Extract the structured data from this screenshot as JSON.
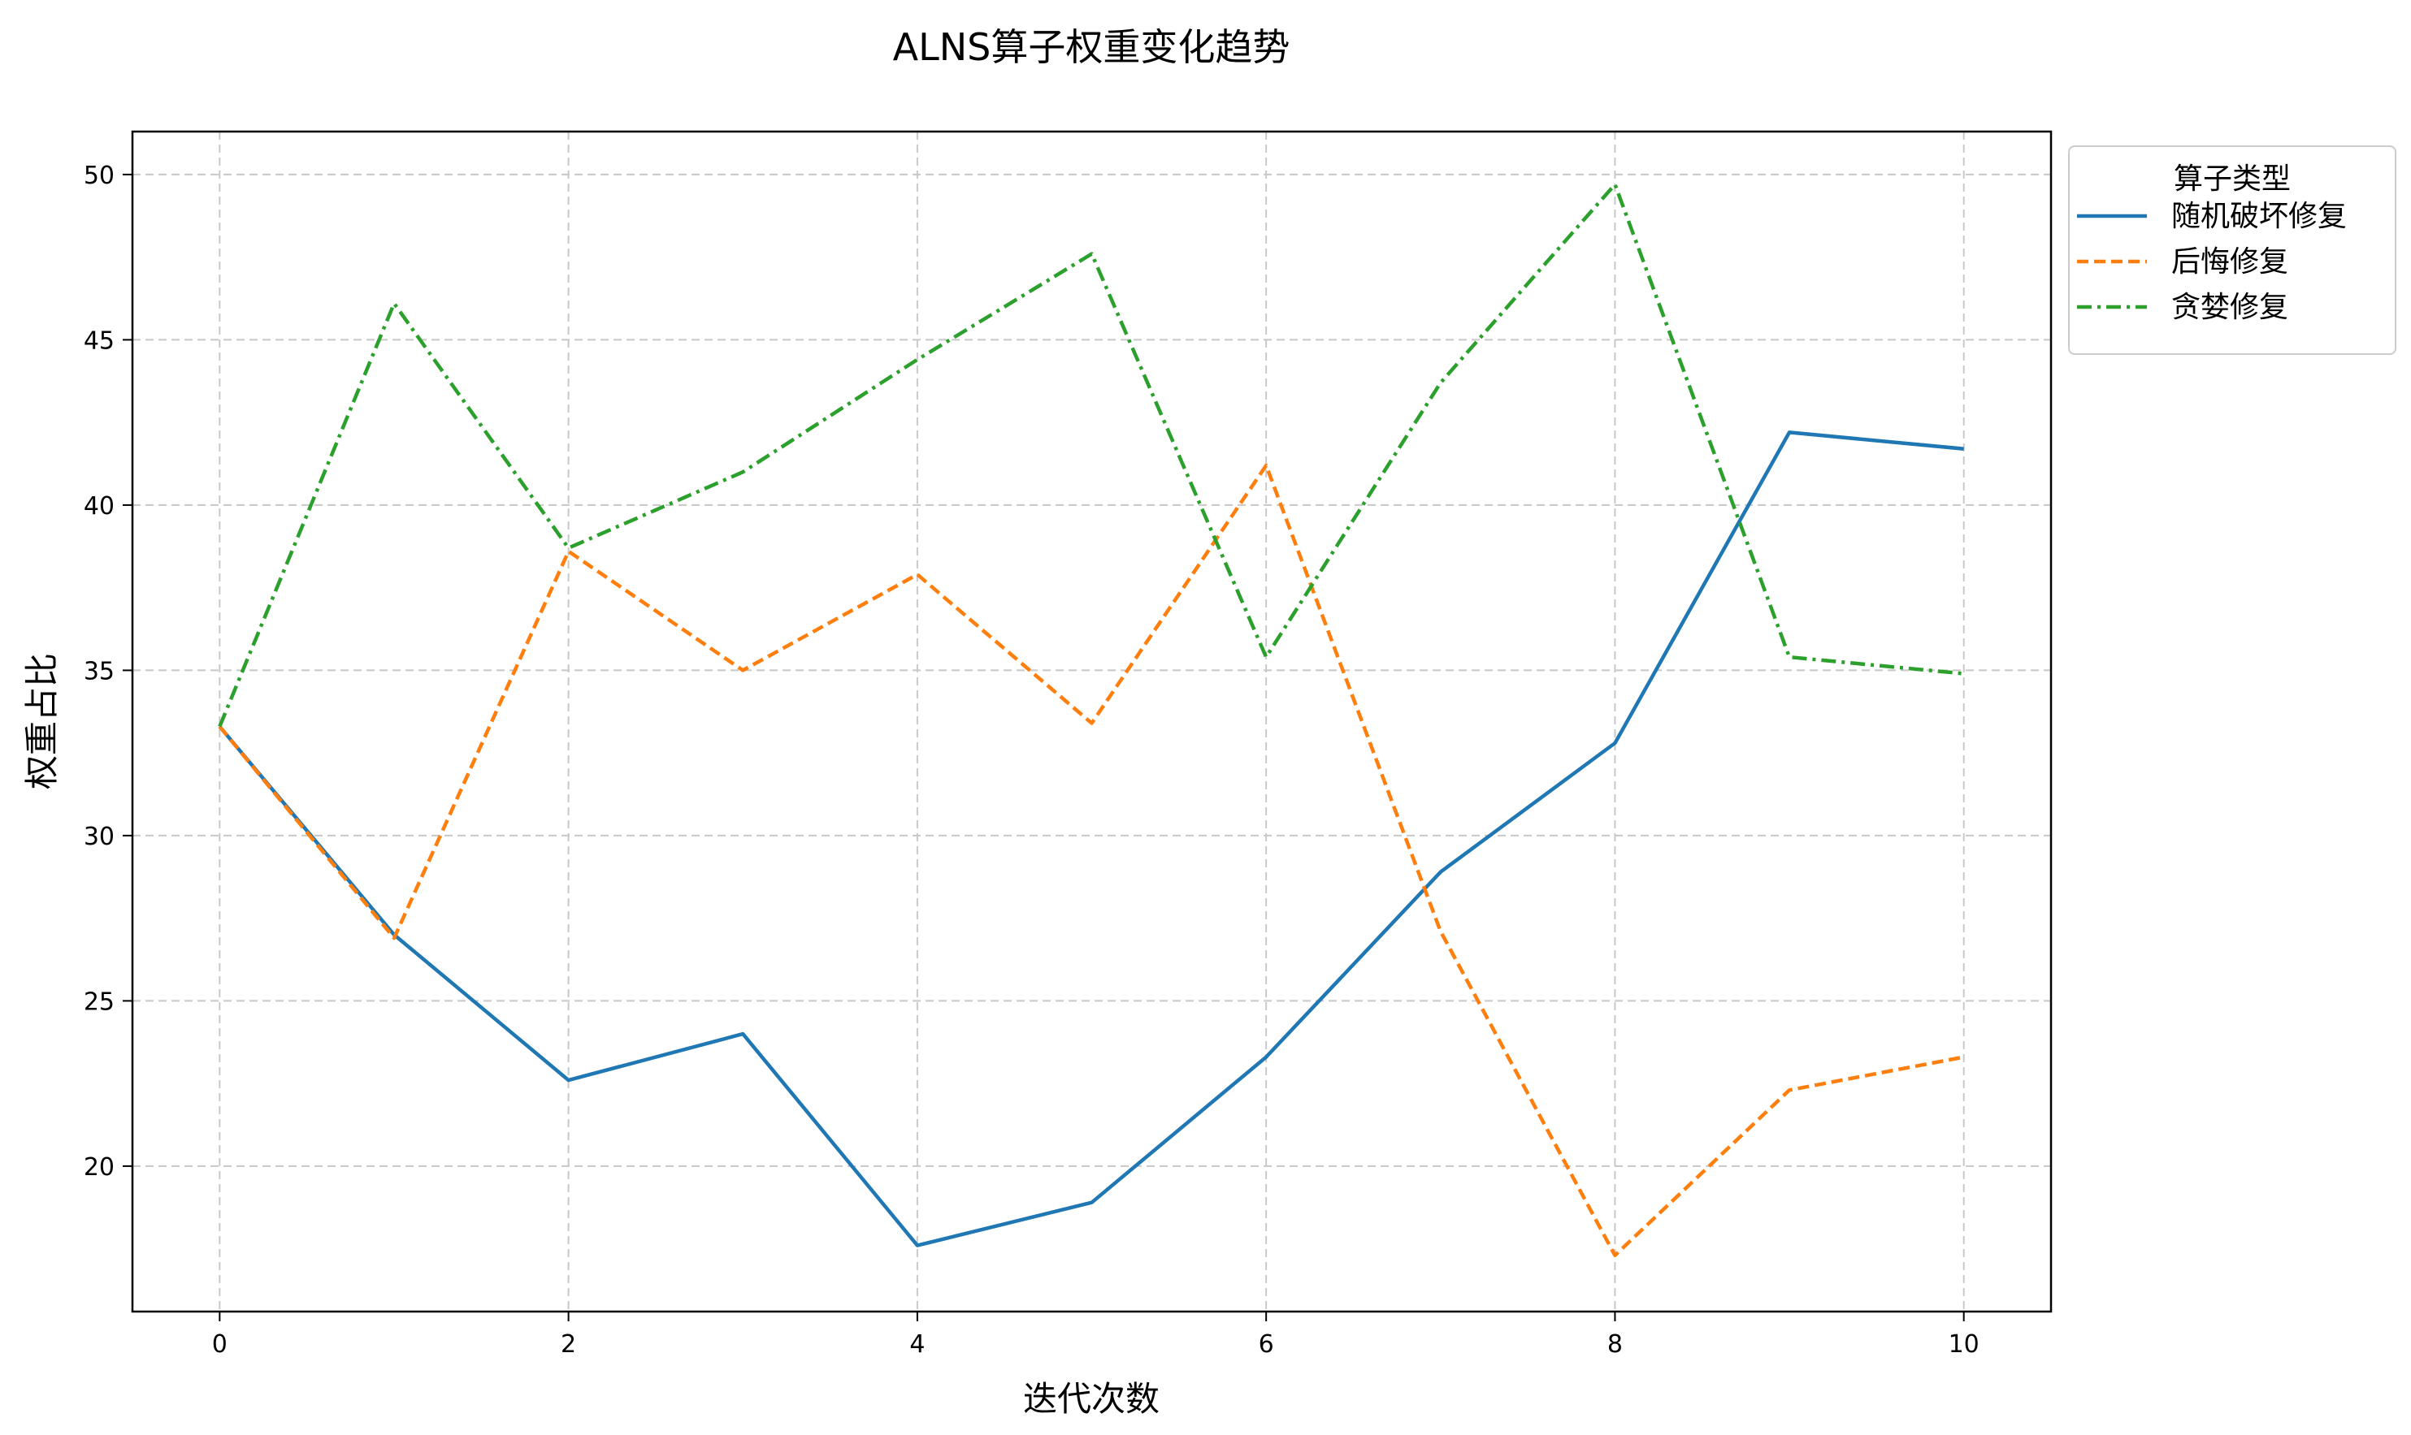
{
  "chart_data": {
    "type": "line",
    "title": "ALNS算子权重变化趋势",
    "xlabel": "迭代次数",
    "ylabel": "权重占比",
    "x": [
      0,
      1,
      2,
      3,
      4,
      5,
      6,
      7,
      8,
      9,
      10
    ],
    "xlim": [
      -0.5,
      10.5
    ],
    "ylim": [
      15.6,
      51.3
    ],
    "x_ticks": [
      "0",
      "2",
      "4",
      "6",
      "8",
      "10"
    ],
    "y_ticks": [
      "20",
      "25",
      "30",
      "35",
      "40",
      "45",
      "50"
    ],
    "grid": true,
    "legend_title": "算子类型",
    "legend_position": "outside-top-right",
    "series": [
      {
        "name": "随机破坏修复",
        "color": "#1f77b4",
        "style": "solid",
        "values": [
          33.3,
          27.0,
          22.6,
          24.0,
          17.6,
          18.9,
          23.3,
          28.9,
          32.8,
          42.2,
          41.7
        ]
      },
      {
        "name": "后悔修复",
        "color": "#ff7f0e",
        "style": "dashed",
        "values": [
          33.3,
          26.9,
          38.6,
          35.0,
          37.9,
          33.4,
          41.2,
          27.1,
          17.3,
          22.3,
          23.3
        ]
      },
      {
        "name": "贪婪修复",
        "color": "#2ca02c",
        "style": "dashdot",
        "values": [
          33.3,
          46.1,
          38.7,
          41.0,
          44.4,
          47.6,
          35.4,
          43.7,
          49.7,
          35.4,
          34.9
        ]
      }
    ]
  }
}
